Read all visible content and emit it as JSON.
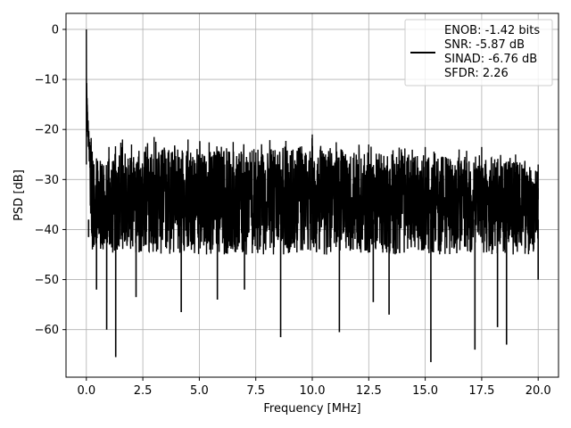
{
  "chart_data": {
    "type": "line",
    "title": "",
    "xlabel": "Frequency [MHz]",
    "ylabel": "PSD [dB]",
    "xlim": [
      -0.9,
      20.9
    ],
    "ylim": [
      -69.5,
      3.2
    ],
    "xticks": [
      0.0,
      2.5,
      5.0,
      7.5,
      10.0,
      12.5,
      15.0,
      17.5,
      20.0
    ],
    "xtick_labels": [
      "0.0",
      "2.5",
      "5.0",
      "7.5",
      "10.0",
      "12.5",
      "15.0",
      "17.5",
      "20.0"
    ],
    "yticks": [
      0,
      -10,
      -20,
      -30,
      -40,
      -50,
      -60
    ],
    "ytick_labels": [
      "0",
      "−10",
      "−20",
      "−30",
      "−40",
      "−50",
      "−60"
    ],
    "grid": true,
    "legend_position": "top-right",
    "legend_entries": [
      "ENOB: -1.42 bits",
      "SNR: -5.87 dB",
      "SINAD: -6.76 dB",
      "SFDR: 2.26"
    ],
    "series": [
      {
        "color": "#000000",
        "noise_floor_db": -34,
        "peaks": [
          {
            "x": 0.0,
            "y": 0.0
          },
          {
            "x": 0.05,
            "y": -12.0
          },
          {
            "x": 0.1,
            "y": -17.0
          },
          {
            "x": 0.2,
            "y": -21.0
          },
          {
            "x": 0.4,
            "y": -25.0
          },
          {
            "x": 1.0,
            "y": -23.5
          },
          {
            "x": 1.6,
            "y": -22.0
          },
          {
            "x": 2.0,
            "y": -23.0
          },
          {
            "x": 3.0,
            "y": -21.5
          },
          {
            "x": 4.5,
            "y": -22.0
          },
          {
            "x": 6.5,
            "y": -22.5
          },
          {
            "x": 10.0,
            "y": -21.0
          },
          {
            "x": 12.5,
            "y": -23.0
          },
          {
            "x": 15.0,
            "y": -23.5
          },
          {
            "x": 16.5,
            "y": -24.0
          },
          {
            "x": 17.5,
            "y": -23.5
          },
          {
            "x": 19.0,
            "y": -25.0
          },
          {
            "x": 20.0,
            "y": -27.0
          }
        ],
        "troughs": [
          {
            "x": 0.1,
            "y": -41.5
          },
          {
            "x": 0.45,
            "y": -52.0
          },
          {
            "x": 0.9,
            "y": -60.0
          },
          {
            "x": 1.3,
            "y": -65.5
          },
          {
            "x": 2.2,
            "y": -53.5
          },
          {
            "x": 4.2,
            "y": -56.5
          },
          {
            "x": 5.8,
            "y": -54.0
          },
          {
            "x": 7.0,
            "y": -52.0
          },
          {
            "x": 8.6,
            "y": -61.5
          },
          {
            "x": 11.2,
            "y": -60.5
          },
          {
            "x": 12.7,
            "y": -54.5
          },
          {
            "x": 13.4,
            "y": -57.0
          },
          {
            "x": 15.25,
            "y": -66.5
          },
          {
            "x": 17.2,
            "y": -64.0
          },
          {
            "x": 18.2,
            "y": -59.5
          },
          {
            "x": 18.6,
            "y": -63.0
          },
          {
            "x": 20.0,
            "y": -50.0
          }
        ]
      }
    ]
  }
}
